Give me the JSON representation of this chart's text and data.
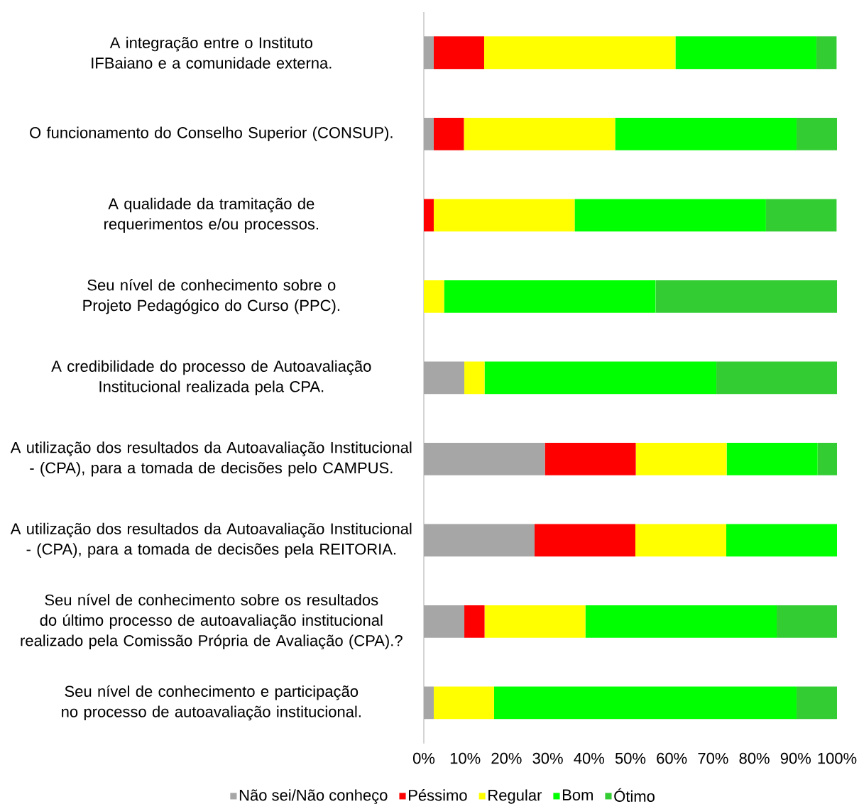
{
  "chart_data": {
    "type": "bar",
    "orientation": "horizontal",
    "stacked": true,
    "categories": [
      "A integração entre o Instituto IFBaiano e a comunidade externa.",
      "O funcionamento do Conselho Superior (CONSUP).",
      "A qualidade da tramitação de requerimentos e/ou processos.",
      "Seu nível de conhecimento sobre o Projeto Pedagógico do Curso (PPC).",
      "A credibilidade do processo de Autoavaliação Institucional realizada pela CPA.",
      "A utilização dos resultados da Autoavaliação Institucional - (CPA), para a tomada de decisões pelo CAMPUS.",
      "A utilização dos resultados da Autoavaliação Institucional - (CPA), para a tomada de decisões pela REITORIA.",
      "Seu nível de conhecimento sobre os resultados do último processo de autoavaliação institucional realizado pela Comissão Própria de Avaliação (CPA).?",
      "Seu nível de conhecimento e participação no processo de autoavaliação institucional."
    ],
    "series": [
      {
        "name": "Não sei/Não conheço",
        "color": "#a6a6a6",
        "values": [
          2.4,
          2.4,
          0,
          0,
          9.8,
          29.3,
          26.8,
          9.8,
          2.4
        ]
      },
      {
        "name": "Péssimo",
        "color": "#ff0000",
        "values": [
          12.2,
          7.3,
          2.4,
          0,
          0,
          22.0,
          24.4,
          4.9,
          0
        ]
      },
      {
        "name": "Regular",
        "color": "#ffff00",
        "values": [
          46.3,
          36.6,
          34.1,
          4.9,
          4.9,
          22.0,
          22.0,
          24.4,
          14.6
        ]
      },
      {
        "name": "Bom",
        "color": "#00ff00",
        "values": [
          34.1,
          43.9,
          46.3,
          51.2,
          56.1,
          22.0,
          26.8,
          46.3,
          73.2
        ]
      },
      {
        "name": "Ótimo",
        "color": "#33cc33",
        "values": [
          4.9,
          9.8,
          17.1,
          43.9,
          29.3,
          4.9,
          0,
          14.6,
          9.8
        ]
      }
    ],
    "xlim": [
      0,
      100
    ],
    "xticks": [
      {
        "value": 0,
        "label": "0%"
      },
      {
        "value": 10,
        "label": "10%"
      },
      {
        "value": 20,
        "label": "20%"
      },
      {
        "value": 30,
        "label": "30%"
      },
      {
        "value": 40,
        "label": "40%"
      },
      {
        "value": 50,
        "label": "50%"
      },
      {
        "value": 60,
        "label": "60%"
      },
      {
        "value": 70,
        "label": "70%"
      },
      {
        "value": 80,
        "label": "80%"
      },
      {
        "value": 90,
        "label": "90%"
      },
      {
        "value": 100,
        "label": "100%"
      }
    ],
    "grid": false,
    "legend": "bottom"
  }
}
